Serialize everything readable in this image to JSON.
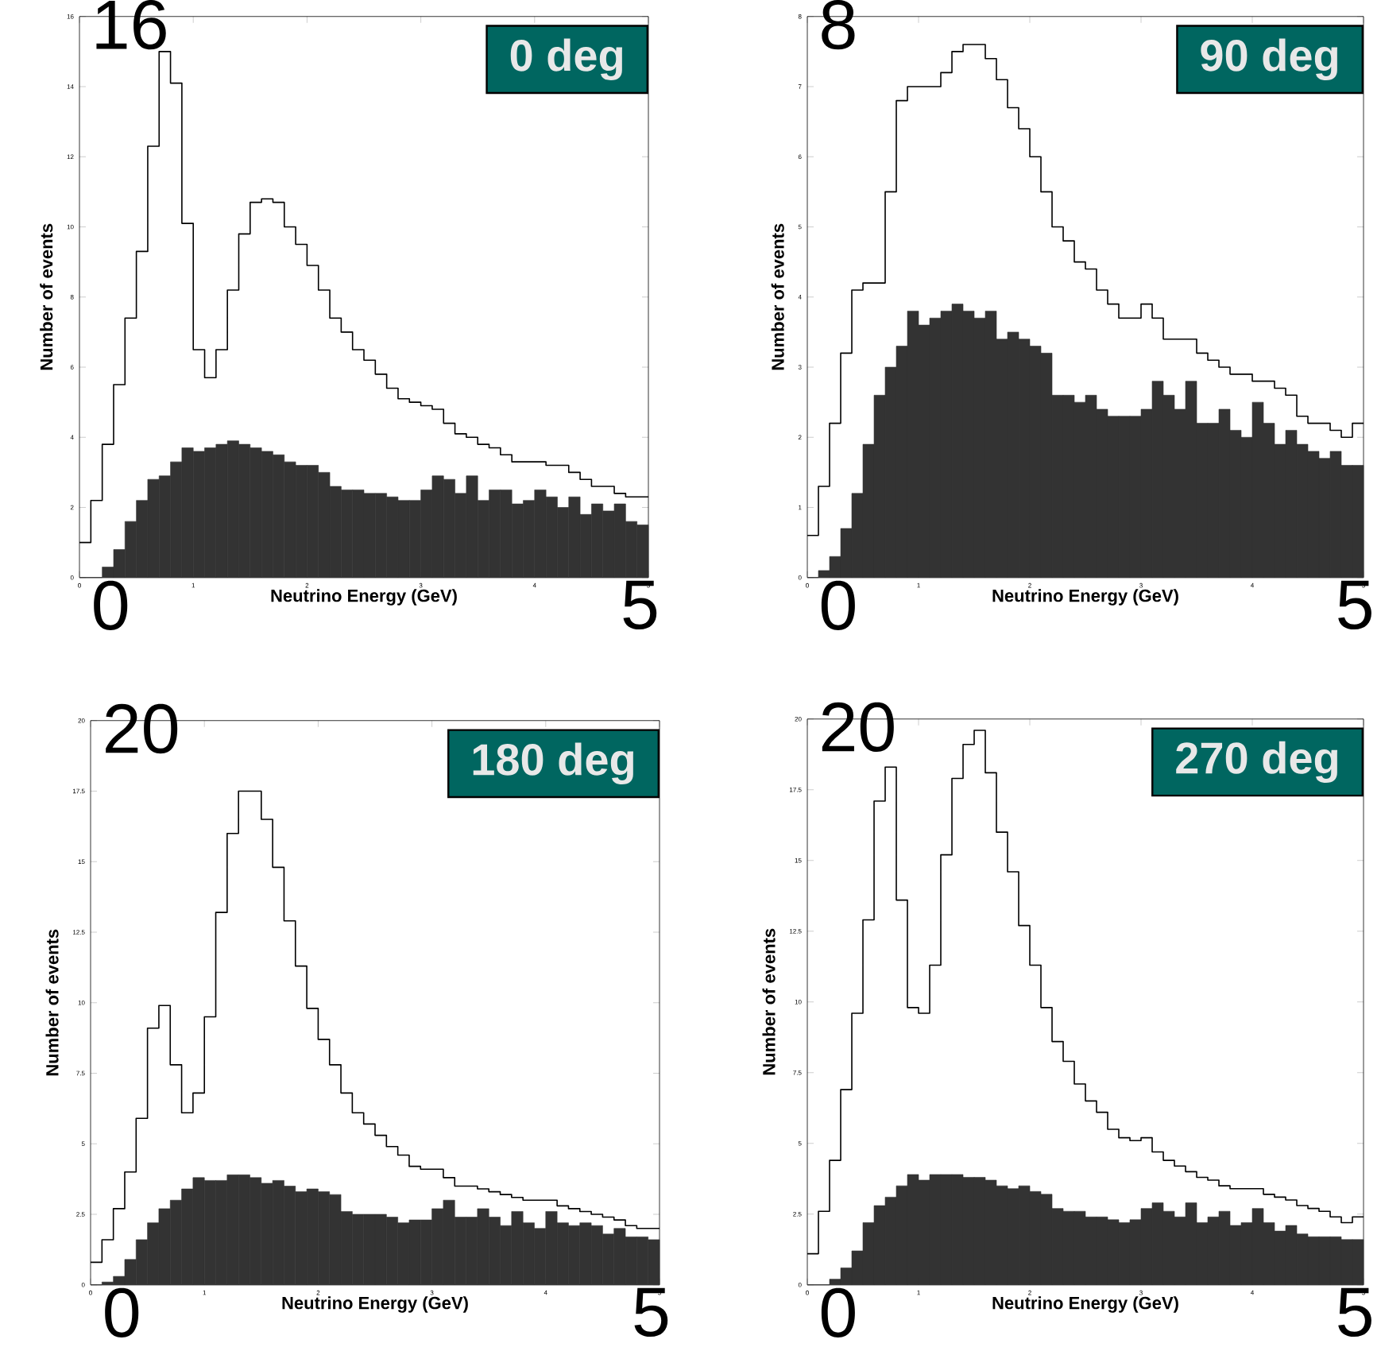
{
  "chart_data": [
    {
      "type": "histogram",
      "title": "0 deg",
      "xlabel": "Neutrino Energy (GeV)",
      "ylabel": "Number of events",
      "xlim": [
        0,
        5
      ],
      "ylim": [
        0,
        16
      ],
      "xticks": [
        0,
        1,
        2,
        3,
        4,
        5
      ],
      "yticks": [
        0,
        2,
        4,
        6,
        8,
        10,
        12,
        14,
        16
      ],
      "annotations": [
        "16",
        "0",
        "5"
      ],
      "bins": [
        0,
        0.1,
        0.2,
        0.3,
        0.4,
        0.5,
        0.6,
        0.7,
        0.8,
        0.9,
        1.0,
        1.1,
        1.2,
        1.3,
        1.4,
        1.5,
        1.6,
        1.7,
        1.8,
        1.9,
        2.0,
        2.1,
        2.2,
        2.3,
        2.4,
        2.5,
        2.6,
        2.7,
        2.8,
        2.9,
        3.0,
        3.1,
        3.2,
        3.3,
        3.4,
        3.5,
        3.6,
        3.7,
        3.8,
        3.9,
        4.0,
        4.1,
        4.2,
        4.3,
        4.4,
        4.5,
        4.6,
        4.7,
        4.8,
        4.9,
        5.0
      ],
      "series": [
        {
          "type": "step",
          "color": "#000000",
          "x": [
            0,
            0.1,
            0.2,
            0.3,
            0.4,
            0.5,
            0.6,
            0.7,
            0.8,
            0.9,
            1.0,
            1.1,
            1.2,
            1.3,
            1.4,
            1.5,
            1.6,
            1.7,
            1.8,
            1.9,
            2.0,
            2.1,
            2.2,
            2.3,
            2.4,
            2.5,
            2.6,
            2.7,
            2.8,
            2.9,
            3.0,
            3.1,
            3.2,
            3.3,
            3.4,
            3.5,
            3.6,
            3.7,
            3.8,
            3.9,
            4.0,
            4.1,
            4.2,
            4.3,
            4.4,
            4.5,
            4.6,
            4.7,
            4.8,
            4.9,
            5.0
          ],
          "values": [
            1.0,
            2.2,
            3.8,
            5.5,
            7.4,
            9.3,
            12.3,
            15.0,
            14.1,
            10.1,
            6.5,
            5.7,
            6.5,
            8.2,
            9.8,
            10.7,
            10.8,
            10.7,
            10.0,
            9.5,
            8.9,
            8.2,
            7.4,
            7.0,
            6.5,
            6.2,
            5.8,
            5.4,
            5.1,
            5.0,
            4.9,
            4.8,
            4.4,
            4.1,
            4.0,
            3.8,
            3.7,
            3.5,
            3.3,
            3.3,
            3.3,
            3.2,
            3.2,
            3.0,
            2.8,
            2.6,
            2.6,
            2.4,
            2.3,
            2.3,
            2.3
          ]
        },
        {
          "type": "histogram",
          "color": "#333333",
          "values": [
            0,
            0,
            0.3,
            0.8,
            1.6,
            2.2,
            2.8,
            2.9,
            3.3,
            3.7,
            3.6,
            3.7,
            3.8,
            3.9,
            3.8,
            3.7,
            3.6,
            3.5,
            3.3,
            3.2,
            3.2,
            3.0,
            2.6,
            2.5,
            2.5,
            2.4,
            2.4,
            2.3,
            2.2,
            2.2,
            2.5,
            2.9,
            2.8,
            2.4,
            2.9,
            2.2,
            2.5,
            2.5,
            2.1,
            2.2,
            2.5,
            2.3,
            2.0,
            2.3,
            1.8,
            2.1,
            1.9,
            2.1,
            1.6,
            1.5
          ]
        }
      ]
    },
    {
      "type": "histogram",
      "title": "90 deg",
      "xlabel": "Neutrino Energy (GeV)",
      "ylabel": "Number of events",
      "xlim": [
        0,
        5
      ],
      "ylim": [
        0,
        8
      ],
      "xticks": [
        0,
        1,
        2,
        3,
        4,
        5
      ],
      "yticks": [
        0,
        1,
        2,
        3,
        4,
        5,
        6,
        7,
        8
      ],
      "annotations": [
        "8",
        "0",
        "5"
      ],
      "bins": [
        0,
        0.1,
        0.2,
        0.3,
        0.4,
        0.5,
        0.6,
        0.7,
        0.8,
        0.9,
        1.0,
        1.1,
        1.2,
        1.3,
        1.4,
        1.5,
        1.6,
        1.7,
        1.8,
        1.9,
        2.0,
        2.1,
        2.2,
        2.3,
        2.4,
        2.5,
        2.6,
        2.7,
        2.8,
        2.9,
        3.0,
        3.1,
        3.2,
        3.3,
        3.4,
        3.5,
        3.6,
        3.7,
        3.8,
        3.9,
        4.0,
        4.1,
        4.2,
        4.3,
        4.4,
        4.5,
        4.6,
        4.7,
        4.8,
        4.9,
        5.0
      ],
      "series": [
        {
          "type": "step",
          "color": "#000000",
          "x": [
            0,
            0.1,
            0.2,
            0.3,
            0.4,
            0.5,
            0.6,
            0.7,
            0.8,
            0.9,
            1.0,
            1.1,
            1.2,
            1.3,
            1.4,
            1.5,
            1.6,
            1.7,
            1.8,
            1.9,
            2.0,
            2.1,
            2.2,
            2.3,
            2.4,
            2.5,
            2.6,
            2.7,
            2.8,
            2.9,
            3.0,
            3.1,
            3.2,
            3.3,
            3.4,
            3.5,
            3.6,
            3.7,
            3.8,
            3.9,
            4.0,
            4.1,
            4.2,
            4.3,
            4.4,
            4.5,
            4.6,
            4.7,
            4.8,
            4.9,
            5.0
          ],
          "values": [
            0.6,
            1.3,
            2.2,
            3.2,
            4.1,
            4.2,
            4.2,
            5.5,
            6.8,
            7.0,
            7.0,
            7.0,
            7.2,
            7.5,
            7.6,
            7.6,
            7.4,
            7.1,
            6.7,
            6.4,
            6.0,
            5.5,
            5.0,
            4.8,
            4.5,
            4.4,
            4.1,
            3.9,
            3.7,
            3.7,
            3.9,
            3.7,
            3.4,
            3.4,
            3.4,
            3.2,
            3.1,
            3.0,
            2.9,
            2.9,
            2.8,
            2.8,
            2.7,
            2.6,
            2.3,
            2.2,
            2.2,
            2.1,
            2.0,
            2.2,
            2.2
          ]
        },
        {
          "type": "histogram",
          "color": "#333333",
          "values": [
            0,
            0.1,
            0.3,
            0.7,
            1.2,
            1.9,
            2.6,
            3.0,
            3.3,
            3.8,
            3.6,
            3.7,
            3.8,
            3.9,
            3.8,
            3.7,
            3.8,
            3.4,
            3.5,
            3.4,
            3.3,
            3.2,
            2.6,
            2.6,
            2.5,
            2.6,
            2.4,
            2.3,
            2.3,
            2.3,
            2.4,
            2.8,
            2.6,
            2.4,
            2.8,
            2.2,
            2.2,
            2.4,
            2.1,
            2.0,
            2.5,
            2.2,
            1.9,
            2.1,
            1.9,
            1.8,
            1.7,
            1.8,
            1.6,
            1.6
          ]
        }
      ]
    },
    {
      "type": "histogram",
      "title": "180 deg",
      "xlabel": "Neutrino Energy (GeV)",
      "ylabel": "Number of events",
      "xlim": [
        0,
        5
      ],
      "ylim": [
        0,
        20
      ],
      "xticks": [
        0,
        1,
        2,
        3,
        4,
        5
      ],
      "yticks": [
        0,
        2.5,
        5,
        7.5,
        10,
        12.5,
        15,
        17.5,
        20
      ],
      "annotations": [
        "20",
        "0",
        "5"
      ],
      "bins": [
        0,
        0.1,
        0.2,
        0.3,
        0.4,
        0.5,
        0.6,
        0.7,
        0.8,
        0.9,
        1.0,
        1.1,
        1.2,
        1.3,
        1.4,
        1.5,
        1.6,
        1.7,
        1.8,
        1.9,
        2.0,
        2.1,
        2.2,
        2.3,
        2.4,
        2.5,
        2.6,
        2.7,
        2.8,
        2.9,
        3.0,
        3.1,
        3.2,
        3.3,
        3.4,
        3.5,
        3.6,
        3.7,
        3.8,
        3.9,
        4.0,
        4.1,
        4.2,
        4.3,
        4.4,
        4.5,
        4.6,
        4.7,
        4.8,
        4.9,
        5.0
      ],
      "series": [
        {
          "type": "step",
          "color": "#000000",
          "x": [
            0,
            0.1,
            0.2,
            0.3,
            0.4,
            0.5,
            0.6,
            0.7,
            0.8,
            0.9,
            1.0,
            1.1,
            1.2,
            1.3,
            1.4,
            1.5,
            1.6,
            1.7,
            1.8,
            1.9,
            2.0,
            2.1,
            2.2,
            2.3,
            2.4,
            2.5,
            2.6,
            2.7,
            2.8,
            2.9,
            3.0,
            3.1,
            3.2,
            3.3,
            3.4,
            3.5,
            3.6,
            3.7,
            3.8,
            3.9,
            4.0,
            4.1,
            4.2,
            4.3,
            4.4,
            4.5,
            4.6,
            4.7,
            4.8,
            4.9,
            5.0
          ],
          "values": [
            0.8,
            1.6,
            2.7,
            4.0,
            5.9,
            9.1,
            9.9,
            7.8,
            6.1,
            6.8,
            9.5,
            13.2,
            16.0,
            17.5,
            17.5,
            16.5,
            14.8,
            12.9,
            11.3,
            9.8,
            8.7,
            7.8,
            6.8,
            6.1,
            5.7,
            5.3,
            4.9,
            4.6,
            4.2,
            4.1,
            4.1,
            3.8,
            3.5,
            3.5,
            3.4,
            3.3,
            3.2,
            3.1,
            3.0,
            3.0,
            3.0,
            2.8,
            2.7,
            2.6,
            2.5,
            2.4,
            2.3,
            2.1,
            2.0,
            2.0,
            2.0
          ]
        },
        {
          "type": "histogram",
          "color": "#333333",
          "values": [
            0,
            0.1,
            0.3,
            0.9,
            1.6,
            2.2,
            2.7,
            3.0,
            3.4,
            3.8,
            3.7,
            3.7,
            3.9,
            3.9,
            3.8,
            3.6,
            3.7,
            3.5,
            3.3,
            3.4,
            3.3,
            3.2,
            2.6,
            2.5,
            2.5,
            2.5,
            2.4,
            2.2,
            2.3,
            2.3,
            2.7,
            3.0,
            2.4,
            2.4,
            2.7,
            2.4,
            2.1,
            2.6,
            2.2,
            2.0,
            2.6,
            2.2,
            2.1,
            2.2,
            2.1,
            1.8,
            2.0,
            1.7,
            1.7,
            1.6
          ]
        }
      ]
    },
    {
      "type": "histogram",
      "title": "270 deg",
      "xlabel": "Neutrino Energy (GeV)",
      "ylabel": "Number of events",
      "xlim": [
        0,
        5
      ],
      "ylim": [
        0,
        20
      ],
      "xticks": [
        0,
        1,
        2,
        3,
        4,
        5
      ],
      "yticks": [
        0,
        2.5,
        5,
        7.5,
        10,
        12.5,
        15,
        17.5,
        20
      ],
      "annotations": [
        "20",
        "0",
        "5"
      ],
      "bins": [
        0,
        0.1,
        0.2,
        0.3,
        0.4,
        0.5,
        0.6,
        0.7,
        0.8,
        0.9,
        1.0,
        1.1,
        1.2,
        1.3,
        1.4,
        1.5,
        1.6,
        1.7,
        1.8,
        1.9,
        2.0,
        2.1,
        2.2,
        2.3,
        2.4,
        2.5,
        2.6,
        2.7,
        2.8,
        2.9,
        3.0,
        3.1,
        3.2,
        3.3,
        3.4,
        3.5,
        3.6,
        3.7,
        3.8,
        3.9,
        4.0,
        4.1,
        4.2,
        4.3,
        4.4,
        4.5,
        4.6,
        4.7,
        4.8,
        4.9,
        5.0
      ],
      "series": [
        {
          "type": "step",
          "color": "#000000",
          "x": [
            0,
            0.1,
            0.2,
            0.3,
            0.4,
            0.5,
            0.6,
            0.7,
            0.8,
            0.9,
            1.0,
            1.1,
            1.2,
            1.3,
            1.4,
            1.5,
            1.6,
            1.7,
            1.8,
            1.9,
            2.0,
            2.1,
            2.2,
            2.3,
            2.4,
            2.5,
            2.6,
            2.7,
            2.8,
            2.9,
            3.0,
            3.1,
            3.2,
            3.3,
            3.4,
            3.5,
            3.6,
            3.7,
            3.8,
            3.9,
            4.0,
            4.1,
            4.2,
            4.3,
            4.4,
            4.5,
            4.6,
            4.7,
            4.8,
            4.9,
            5.0
          ],
          "values": [
            1.1,
            2.6,
            4.4,
            6.9,
            9.6,
            12.9,
            17.1,
            18.3,
            13.6,
            9.8,
            9.6,
            11.3,
            15.2,
            17.9,
            19.1,
            19.6,
            18.1,
            16.0,
            14.6,
            12.7,
            11.3,
            9.8,
            8.6,
            7.9,
            7.1,
            6.5,
            6.1,
            5.5,
            5.2,
            5.1,
            5.2,
            4.7,
            4.4,
            4.2,
            4.0,
            3.8,
            3.7,
            3.5,
            3.4,
            3.4,
            3.4,
            3.2,
            3.1,
            3.0,
            2.8,
            2.7,
            2.6,
            2.4,
            2.2,
            2.4,
            2.4
          ]
        },
        {
          "type": "histogram",
          "color": "#333333",
          "values": [
            0,
            0,
            0.2,
            0.6,
            1.2,
            2.2,
            2.8,
            3.1,
            3.5,
            3.9,
            3.7,
            3.9,
            3.9,
            3.9,
            3.8,
            3.8,
            3.7,
            3.5,
            3.4,
            3.5,
            3.3,
            3.2,
            2.7,
            2.6,
            2.6,
            2.4,
            2.4,
            2.3,
            2.2,
            2.3,
            2.7,
            2.9,
            2.6,
            2.4,
            2.9,
            2.2,
            2.4,
            2.6,
            2.1,
            2.2,
            2.7,
            2.2,
            1.9,
            2.1,
            1.8,
            1.7,
            1.7,
            1.7,
            1.6,
            1.6
          ]
        }
      ]
    }
  ]
}
